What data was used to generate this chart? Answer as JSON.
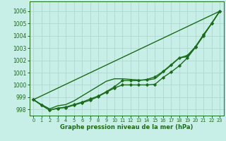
{
  "background_color": "#c8eee8",
  "grid_color": "#b0d8d0",
  "line_color": "#1a6b1a",
  "xlabel": "Graphe pression niveau de la mer (hPa)",
  "xlim": [
    -0.5,
    23.5
  ],
  "ylim": [
    997.5,
    1006.8
  ],
  "yticks": [
    998,
    999,
    1000,
    1001,
    1002,
    1003,
    1004,
    1005,
    1006
  ],
  "xticks": [
    0,
    1,
    2,
    3,
    4,
    5,
    6,
    7,
    8,
    9,
    10,
    11,
    12,
    13,
    14,
    15,
    16,
    17,
    18,
    19,
    20,
    21,
    22,
    23
  ],
  "series": [
    {
      "x": [
        0,
        23
      ],
      "y": [
        998.8,
        1006.0
      ],
      "marker": null,
      "markersize": 0,
      "linewidth": 1.0,
      "dashed": false
    },
    {
      "x": [
        0,
        1,
        2,
        3,
        4,
        5,
        6,
        7,
        8,
        9,
        10,
        11,
        12,
        13,
        14,
        15,
        16,
        17,
        18,
        19,
        20,
        21,
        22,
        23
      ],
      "y": [
        998.8,
        998.35,
        997.95,
        998.1,
        998.15,
        998.35,
        998.55,
        998.75,
        999.05,
        999.4,
        999.75,
        1000.0,
        1000.0,
        1000.0,
        1000.0,
        1000.05,
        1000.6,
        1001.05,
        1001.55,
        1002.2,
        1003.05,
        1004.0,
        1005.0,
        1006.0
      ],
      "marker": "D",
      "markersize": 2.2,
      "linewidth": 1.0,
      "dashed": false
    },
    {
      "x": [
        0,
        1,
        2,
        3,
        4,
        5,
        6,
        7,
        8,
        9,
        10,
        11,
        12,
        13,
        14,
        15,
        16,
        17,
        18,
        19,
        20,
        21,
        22,
        23
      ],
      "y": [
        998.8,
        998.35,
        997.95,
        998.1,
        998.2,
        998.4,
        998.6,
        998.85,
        999.1,
        999.45,
        999.85,
        1000.35,
        1000.35,
        1000.35,
        1000.45,
        1000.65,
        1001.1,
        1001.65,
        1002.2,
        1002.4,
        1003.1,
        1004.1,
        1005.0,
        1006.0
      ],
      "marker": "D",
      "markersize": 2.2,
      "linewidth": 1.0,
      "dashed": false
    },
    {
      "x": [
        0,
        1,
        2,
        3,
        4,
        5,
        6,
        7,
        8,
        9,
        10,
        11,
        12,
        13,
        14,
        15,
        16,
        17,
        18,
        19,
        20,
        21,
        22,
        23
      ],
      "y": [
        998.8,
        998.4,
        998.05,
        998.3,
        998.4,
        998.7,
        999.1,
        999.5,
        999.9,
        1000.3,
        1000.5,
        1000.5,
        1000.45,
        1000.4,
        1000.4,
        1000.5,
        1001.05,
        1001.6,
        1002.2,
        1002.3,
        1003.1,
        1004.05,
        1005.0,
        1006.0
      ],
      "marker": null,
      "markersize": 0,
      "linewidth": 1.0,
      "dashed": false
    }
  ]
}
